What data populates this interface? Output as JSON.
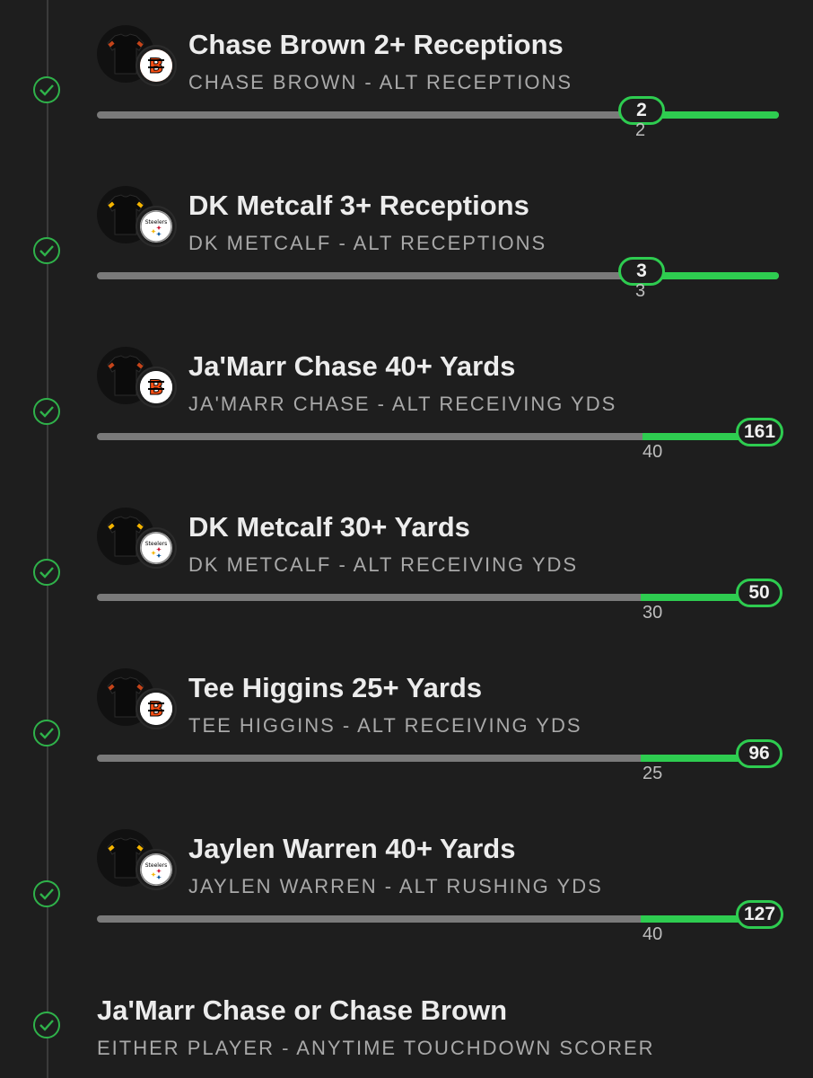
{
  "legs": [
    {
      "title": "Chase Brown 2+ Receptions",
      "subtitle": "CHASE BROWN - ALT RECEPTIONS",
      "team": "bengals",
      "team_icon": "bengals-logo-icon",
      "threshold": "2",
      "result": "2",
      "threshold_value": 2,
      "result_value": 2,
      "progress": 0.8
    },
    {
      "title": "DK Metcalf 3+ Receptions",
      "subtitle": "DK METCALF - ALT RECEPTIONS",
      "team": "steelers",
      "team_icon": "steelers-logo-icon",
      "threshold": "3",
      "result": "3",
      "threshold_value": 3,
      "result_value": 3,
      "progress": 0.8
    },
    {
      "title": "Ja'Marr Chase 40+ Yards",
      "subtitle": "JA'MARR CHASE - ALT RECEIVING YDS",
      "team": "bengals",
      "team_icon": "bengals-logo-icon",
      "threshold": "40",
      "result": "161",
      "threshold_value": 40,
      "result_value": 161,
      "progress": 0.8
    },
    {
      "title": "DK Metcalf 30+ Yards",
      "subtitle": "DK METCALF - ALT RECEIVING YDS",
      "team": "steelers",
      "team_icon": "steelers-logo-icon",
      "threshold": "30",
      "result": "50",
      "threshold_value": 30,
      "result_value": 50,
      "progress": 0.8
    },
    {
      "title": "Tee Higgins 25+ Yards",
      "subtitle": "TEE HIGGINS - ALT RECEIVING YDS",
      "team": "bengals",
      "team_icon": "bengals-logo-icon",
      "threshold": "25",
      "result": "96",
      "threshold_value": 25,
      "result_value": 96,
      "progress": 0.8
    },
    {
      "title": "Jaylen Warren 40+ Yards",
      "subtitle": "JAYLEN WARREN - ALT RUSHING YDS",
      "team": "steelers",
      "team_icon": "steelers-logo-icon",
      "threshold": "40",
      "result": "127",
      "threshold_value": 40,
      "result_value": 127,
      "progress": 0.8
    }
  ],
  "final_leg": {
    "title": "Ja'Marr Chase or Chase Brown",
    "subtitle": "EITHER PLAYER - ANYTIME TOUCHDOWN SCORER"
  },
  "colors": {
    "background": "#1e1e1e",
    "win_green": "#2ecc50",
    "check_green": "#2fb24a",
    "track_gray": "#7a7a7a",
    "title_text": "#ececec",
    "subtitle_text": "#a9a9a9"
  },
  "icons": {
    "status": "check-circle-icon",
    "avatar": "jersey-icon"
  }
}
